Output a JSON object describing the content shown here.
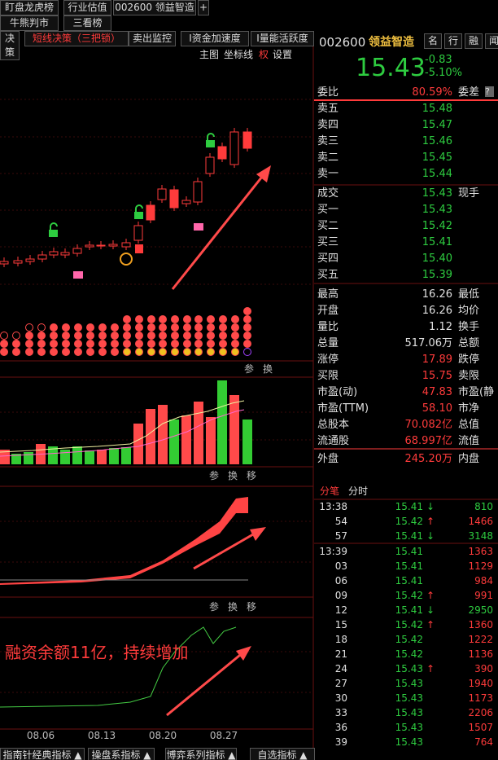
{
  "top_tabs": [
    "盯盘龙虎榜",
    "行业估值",
    "牛熊判市",
    "三看榜",
    "002600 领益智造",
    "+"
  ],
  "tool_tabs": [
    "决策",
    "短线决策（三把锁）",
    "卖出监控",
    "Ⅰ资金加速度",
    "Ⅰ量能活跃度"
  ],
  "toolbar": [
    "主图",
    "坐标线",
    "权",
    "设置"
  ],
  "panel_buttons": [
    "参",
    "换",
    "移"
  ],
  "x_labels": [
    "08.06",
    "08.13",
    "08.20",
    "08.27"
  ],
  "annotation": "融资余额11亿，持续增加",
  "bottom_tabs": [
    "指南针经典指标 ▲",
    "操盘系指标 ▲",
    "博弈系列指标 ▲",
    "自选指标 ▲"
  ],
  "quote": {
    "code": "002600",
    "name": "领益智造",
    "buttons": [
      "名",
      "行",
      "融",
      "闻"
    ],
    "price": "15.43",
    "change": "-0.83",
    "pct": "-5.10%"
  },
  "weibi": {
    "label": "委比",
    "value": "80.59%",
    "label2": "委差",
    "help": "?"
  },
  "sell": [
    {
      "label": "卖五",
      "price": "15.48"
    },
    {
      "label": "卖四",
      "price": "15.47"
    },
    {
      "label": "卖三",
      "price": "15.46"
    },
    {
      "label": "卖二",
      "price": "15.45"
    },
    {
      "label": "卖一",
      "price": "15.44"
    }
  ],
  "trade": {
    "label": "成交",
    "price": "15.43",
    "label2": "现手"
  },
  "buy": [
    {
      "label": "买一",
      "price": "15.43"
    },
    {
      "label": "买二",
      "price": "15.42"
    },
    {
      "label": "买三",
      "price": "15.41"
    },
    {
      "label": "买四",
      "price": "15.40"
    },
    {
      "label": "买五",
      "price": "15.39"
    }
  ],
  "stats": [
    {
      "label": "最高",
      "value": "16.26",
      "label2": "最低",
      "color": "#e0e0e0"
    },
    {
      "label": "开盘",
      "value": "16.26",
      "label2": "均价",
      "color": "#e0e0e0"
    },
    {
      "label": "量比",
      "value": "1.12",
      "label2": "换手",
      "color": "#e0e0e0"
    },
    {
      "label": "总量",
      "value": "517.06万",
      "label2": "总额",
      "color": "#e0e0e0"
    },
    {
      "label": "涨停",
      "value": "17.89",
      "label2": "跌停",
      "color": "#ff3b3b"
    },
    {
      "label": "买限",
      "value": "15.75",
      "label2": "卖限",
      "color": "#ff3b3b"
    },
    {
      "label": "市盈(动)",
      "value": "47.83",
      "label2": "市盈(静",
      "color": "#ff3b3b"
    },
    {
      "label": "市盈(TTM)",
      "value": "58.10",
      "label2": "市净",
      "color": "#ff3b3b"
    },
    {
      "label": "总股本",
      "value": "70.082亿",
      "label2": "总值",
      "color": "#ff3b3b"
    },
    {
      "label": "流通股",
      "value": "68.997亿",
      "label2": "流值",
      "color": "#ff3b3b"
    },
    {
      "label": "外盘",
      "value": "245.20万",
      "label2": "内盘",
      "color": "#ff3b3b"
    }
  ],
  "tick_tabs": [
    "分笔",
    "分时"
  ],
  "ticks": [
    {
      "time": "13:38",
      "price": "15.41",
      "dir": "↓",
      "volume": "810",
      "color": "#2ecc40"
    },
    {
      "time": "54",
      "price": "15.42",
      "dir": "↑",
      "volume": "1466",
      "color": "#ff3b3b"
    },
    {
      "time": "57",
      "price": "15.41",
      "dir": "↓",
      "volume": "3148",
      "color": "#2ecc40"
    },
    {
      "time": "13:39",
      "price": "15.41",
      "dir": "",
      "volume": "1363",
      "color": "#ff3b3b"
    },
    {
      "time": "03",
      "price": "15.41",
      "dir": "",
      "volume": "1129",
      "color": "#ff3b3b"
    },
    {
      "time": "06",
      "price": "15.41",
      "dir": "",
      "volume": "984",
      "color": "#ff3b3b"
    },
    {
      "time": "09",
      "price": "15.42",
      "dir": "↑",
      "volume": "991",
      "color": "#ff3b3b"
    },
    {
      "time": "12",
      "price": "15.41",
      "dir": "↓",
      "volume": "2950",
      "color": "#2ecc40"
    },
    {
      "time": "15",
      "price": "15.42",
      "dir": "↑",
      "volume": "1360",
      "color": "#ff3b3b"
    },
    {
      "time": "18",
      "price": "15.42",
      "dir": "",
      "volume": "1222",
      "color": "#ff3b3b"
    },
    {
      "time": "21",
      "price": "15.42",
      "dir": "",
      "volume": "1136",
      "color": "#ff3b3b"
    },
    {
      "time": "24",
      "price": "15.43",
      "dir": "↑",
      "volume": "390",
      "color": "#ff3b3b"
    },
    {
      "time": "27",
      "price": "15.43",
      "dir": "",
      "volume": "1940",
      "color": "#ff3b3b"
    },
    {
      "time": "30",
      "price": "15.43",
      "dir": "",
      "volume": "1173",
      "color": "#ff3b3b"
    },
    {
      "time": "33",
      "price": "15.43",
      "dir": "",
      "volume": "2206",
      "color": "#ff3b3b"
    },
    {
      "time": "36",
      "price": "15.43",
      "dir": "",
      "volume": "1507",
      "color": "#ff3b3b"
    },
    {
      "time": "39",
      "price": "15.43",
      "dir": "",
      "volume": "764",
      "color": "#ff3b3b"
    }
  ]
}
